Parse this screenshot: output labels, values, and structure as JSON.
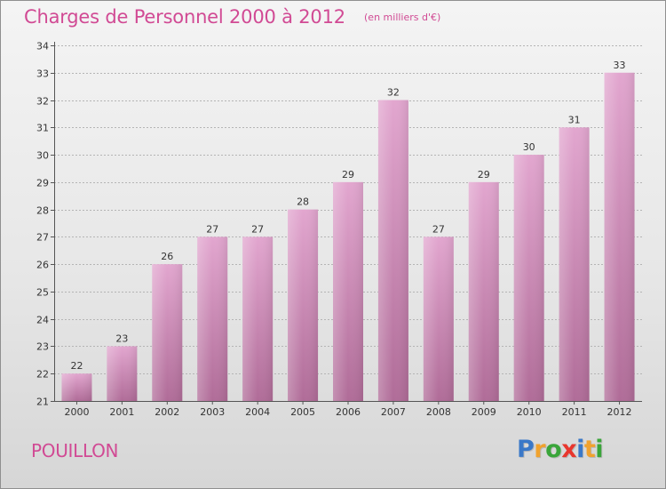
{
  "title": "Charges de Personnel 2000 à 2012",
  "unit": "(en milliers d'€)",
  "place": "POUILLON",
  "brand": {
    "letters": [
      "P",
      "r",
      "o",
      "x",
      "i",
      "t",
      "i"
    ],
    "colors": [
      "#3a78c8",
      "#f0a22e",
      "#3aa53a",
      "#e8362d",
      "#3a78c8",
      "#f0a22e",
      "#3aa53a"
    ]
  },
  "colors": {
    "bar_top": "#e2a6cf",
    "bar_bottom": "#b06c98",
    "title": "#d14a94"
  },
  "chart_data": {
    "type": "bar",
    "title": "Charges de Personnel 2000 à 2012",
    "subtitle": "(en milliers d'€)",
    "xlabel": "",
    "ylabel": "",
    "categories": [
      "2000",
      "2001",
      "2002",
      "2003",
      "2004",
      "2005",
      "2006",
      "2007",
      "2008",
      "2009",
      "2010",
      "2011",
      "2012"
    ],
    "values": [
      22,
      23,
      26,
      27,
      27,
      28,
      29,
      32,
      27,
      29,
      30,
      31,
      33
    ],
    "data_labels": [
      "22",
      "23",
      "26",
      "27",
      "27",
      "28",
      "29",
      "32",
      "27",
      "29",
      "30",
      "31",
      "33"
    ],
    "ylim": [
      21,
      34
    ],
    "yticks": [
      "21",
      "22",
      "23",
      "24",
      "25",
      "26",
      "27",
      "28",
      "29",
      "30",
      "31",
      "32",
      "33",
      "34"
    ],
    "grid": true,
    "legend": "none"
  }
}
